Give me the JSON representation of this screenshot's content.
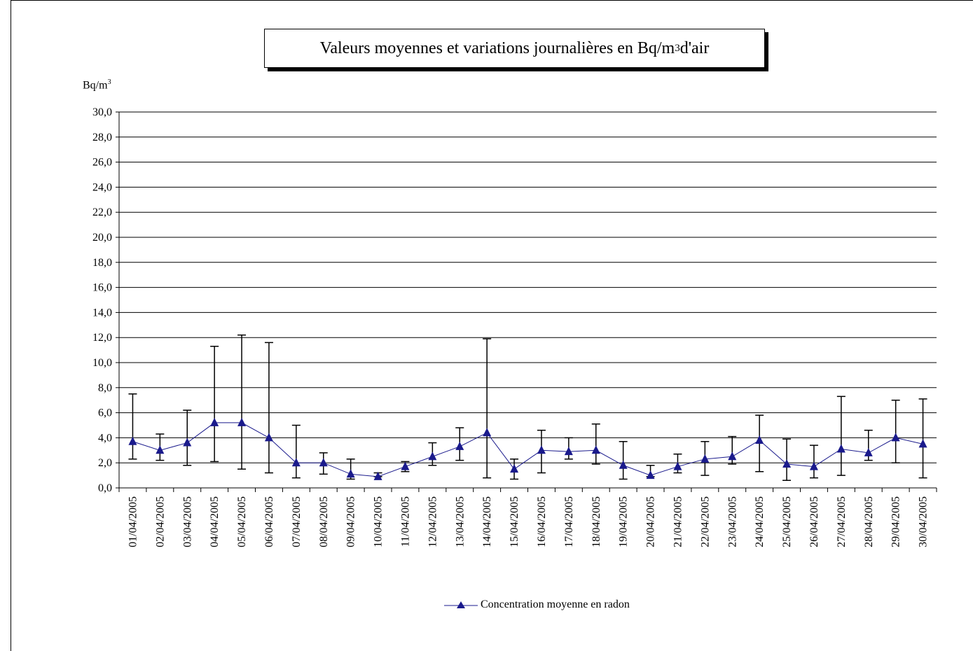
{
  "chart_data": {
    "type": "line",
    "title_prefix": "Valeurs moyennes et variations journalières en Bq/m",
    "title_sup": "3",
    "title_suffix": " d'air",
    "ylabel_base": "Bq/m",
    "ylabel_sup": "3",
    "ylim": [
      0,
      30
    ],
    "ytick_step": 2,
    "ytick_labels": [
      "0,0",
      "2,0",
      "4,0",
      "6,0",
      "8,0",
      "10,0",
      "12,0",
      "14,0",
      "16,0",
      "18,0",
      "20,0",
      "22,0",
      "24,0",
      "26,0",
      "28,0",
      "30,0"
    ],
    "grid": true,
    "legend_position": "bottom",
    "categories": [
      "01/04/2005",
      "02/04/2005",
      "03/04/2005",
      "04/04/2005",
      "05/04/2005",
      "06/04/2005",
      "07/04/2005",
      "08/04/2005",
      "09/04/2005",
      "10/04/2005",
      "11/04/2005",
      "12/04/2005",
      "13/04/2005",
      "14/04/2005",
      "15/04/2005",
      "16/04/2005",
      "17/04/2005",
      "18/04/2005",
      "19/04/2005",
      "20/04/2005",
      "21/04/2005",
      "22/04/2005",
      "23/04/2005",
      "24/04/2005",
      "25/04/2005",
      "26/04/2005",
      "27/04/2005",
      "28/04/2005",
      "29/04/2005",
      "30/04/2005"
    ],
    "series": [
      {
        "name": "Concentration moyenne en radon",
        "color": "#1a1a8c",
        "marker": "triangle",
        "values": [
          3.7,
          3.0,
          3.6,
          5.2,
          5.2,
          4.0,
          2.0,
          2.0,
          1.1,
          0.9,
          1.7,
          2.5,
          3.3,
          4.4,
          1.5,
          3.0,
          2.9,
          3.0,
          1.8,
          1.0,
          1.7,
          2.3,
          2.5,
          3.8,
          1.9,
          1.7,
          3.1,
          2.8,
          4.0,
          3.5
        ],
        "error_low": [
          2.3,
          2.2,
          1.8,
          2.1,
          1.5,
          1.2,
          0.8,
          1.1,
          0.7,
          0.9,
          1.3,
          1.8,
          2.2,
          0.8,
          0.7,
          1.2,
          2.3,
          1.9,
          0.7,
          0.9,
          1.2,
          1.0,
          1.9,
          1.3,
          0.6,
          0.8,
          1.0,
          2.2,
          2.0,
          0.8
        ],
        "error_high": [
          7.5,
          4.3,
          6.2,
          11.3,
          12.2,
          11.6,
          5.0,
          2.8,
          2.3,
          1.2,
          2.1,
          3.6,
          4.8,
          11.9,
          2.3,
          4.6,
          4.0,
          5.1,
          3.7,
          1.8,
          2.7,
          3.7,
          4.1,
          5.8,
          3.9,
          3.4,
          7.3,
          4.6,
          7.0,
          7.1
        ]
      }
    ]
  }
}
